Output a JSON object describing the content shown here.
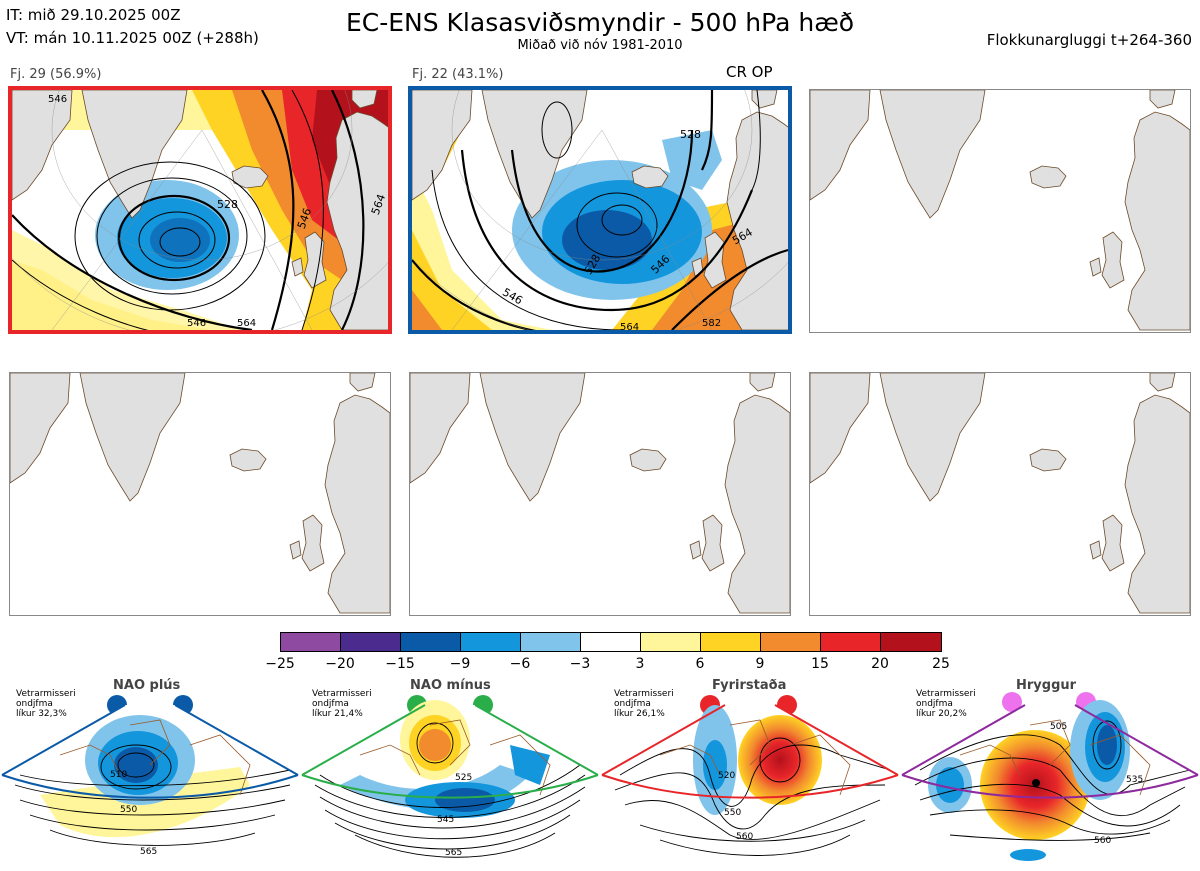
{
  "header": {
    "init_time": "IT: mið 29.10.2025 00Z",
    "valid_time": "VT: mán 10.11.2025 00Z  (+288h)",
    "title": "EC-ENS Klasasviðsmyndir - 500 hPa hæð",
    "subtitle": "Miðað við nóv 1981-2010",
    "cluster_window": "Flokkunargluggi t+264-360"
  },
  "clusters": [
    {
      "label": "Fj. 29 (56.9%)",
      "frame_color": "#e8262a",
      "contour_labels": [
        "528",
        "546",
        "564",
        "546",
        "546",
        "564"
      ],
      "extra_label": ""
    },
    {
      "label": "Fj. 22 (43.1%)",
      "frame_color": "#0b5aa7",
      "contour_labels": [
        "528",
        "528",
        "546",
        "546",
        "564",
        "564",
        "582"
      ],
      "extra_label": "CR OP"
    }
  ],
  "colorbar": {
    "colors": [
      "#8e4aa0",
      "#4b2b8e",
      "#0b5aa7",
      "#1496dd",
      "#80c4ec",
      "#ffffff",
      "#fff59a",
      "#ffd324",
      "#f28a2e",
      "#e8262a",
      "#b3111b"
    ],
    "ticks": [
      "−25",
      "−20",
      "−15",
      "−9",
      "−6",
      "−3",
      "3",
      "6",
      "9",
      "15",
      "20",
      "25"
    ]
  },
  "regimes": [
    {
      "name": "NAO plús",
      "prob_lines": [
        "Vetrarmisseri",
        "ondjfma",
        "líkur 32,3%"
      ],
      "color": "#0b5aa7",
      "contour_labels": [
        "510",
        "550",
        "565"
      ]
    },
    {
      "name": "NAO mínus",
      "prob_lines": [
        "Vetrarmisseri",
        "ondjfma",
        "líkur 21,4%"
      ],
      "color": "#2aae4a",
      "contour_labels": [
        "525",
        "545",
        "565"
      ]
    },
    {
      "name": "Fyrirstaða",
      "prob_lines": [
        "Vetrarmisseri",
        "ondjfma",
        "líkur 26,1%"
      ],
      "color": "#e8262a",
      "contour_labels": [
        "520",
        "550",
        "560"
      ]
    },
    {
      "name": "Hryggur",
      "prob_lines": [
        "Vetrarmisseri",
        "ondjfma",
        "líkur 20,2%"
      ],
      "color": "#8e2a9e",
      "contour_labels": [
        "505",
        "535",
        "560"
      ]
    }
  ]
}
